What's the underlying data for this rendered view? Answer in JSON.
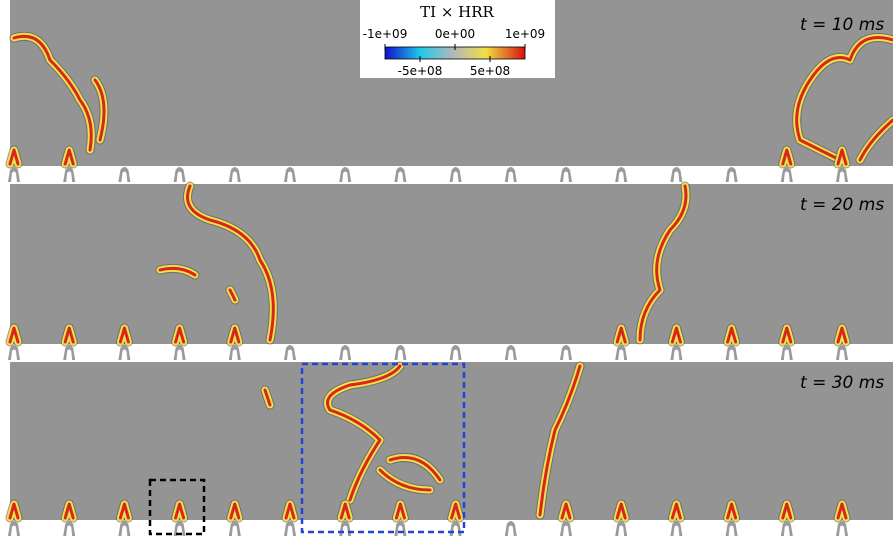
{
  "panels": [
    {
      "label": "t = 10 ms"
    },
    {
      "label": "t = 20 ms"
    },
    {
      "label": "t = 30 ms"
    }
  ],
  "colorbar": {
    "title": "TI × HRR",
    "range": [
      -1000000000,
      1000000000
    ],
    "top_ticks": [
      {
        "value": -1000000000,
        "label": "-1e+09"
      },
      {
        "value": 0,
        "label": "0e+00"
      },
      {
        "value": 1000000000,
        "label": "1e+09"
      }
    ],
    "bottom_ticks": [
      {
        "value": -500000000,
        "label": "-5e+08"
      },
      {
        "value": 500000000,
        "label": "5e+08"
      }
    ]
  }
}
